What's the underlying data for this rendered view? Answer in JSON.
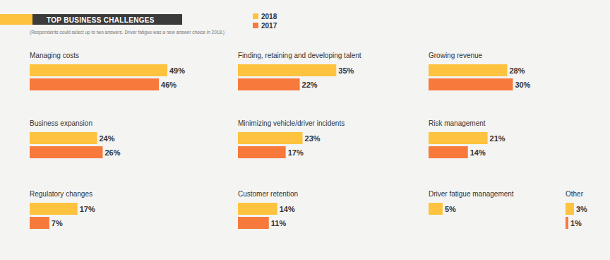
{
  "chart_data": {
    "type": "bar",
    "title": "TOP BUSINESS CHALLENGES",
    "subtitle": "(Respondents could select up to two answers. Driver fatigue was a new answer choice in 2018.)",
    "categories": [
      "Managing costs",
      "Finding, retaining and developing talent",
      "Growing revenue",
      "Business expansion",
      "Minimizing vehicle/driver incidents",
      "Risk management",
      "Regulatory changes",
      "Customer retention",
      "Driver fatigue management",
      "Other"
    ],
    "series": [
      {
        "name": "2018",
        "color": "#fdc33f",
        "values": [
          49,
          35,
          28,
          24,
          23,
          21,
          17,
          14,
          5,
          3
        ],
        "value_labels": [
          "49%",
          "35%",
          "28%",
          "24%",
          "23%",
          "21%",
          "17%",
          "14%",
          "5%",
          "3%"
        ]
      },
      {
        "name": "2017",
        "color": "#f7793b",
        "values": [
          46,
          22,
          30,
          26,
          17,
          14,
          7,
          11,
          null,
          1
        ],
        "value_labels": [
          "46%",
          "22%",
          "30%",
          "26%",
          "17%",
          "14%",
          "7%",
          "11%",
          null,
          "1%"
        ]
      }
    ],
    "orientation": "horizontal",
    "data_labels": true,
    "tick_labels": false,
    "legend": "top"
  }
}
